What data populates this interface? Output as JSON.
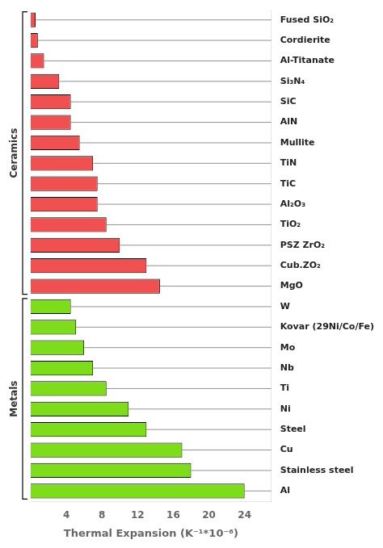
{
  "chart_data": {
    "type": "bar",
    "orientation": "horizontal",
    "xlabel": "Thermal Expansion (K⁻¹*10⁻⁶)",
    "categories": [
      "Fused SiO₂",
      "Cordierite",
      "Al-Titanate",
      "Si₃N₄",
      "SiC",
      "AlN",
      "Mullite",
      "TiN",
      "TiC",
      "Al₂O₃",
      "TiO₂",
      "PSZ ZrO₂",
      "Cub.ZO₂",
      "MgO",
      "W",
      "Kovar (29Ni/Co/Fe)",
      "Mo",
      "Nb",
      "Ti",
      "Ni",
      "Steel",
      "Cu",
      "Stainless steel",
      "Al"
    ],
    "series": [
      {
        "name": "Ceramics",
        "color": "#f05050",
        "values": [
          0.55,
          0.8,
          1.5,
          3.2,
          4.5,
          4.5,
          5.5,
          7.0,
          7.5,
          7.5,
          8.5,
          10.0,
          13.0,
          14.5,
          null,
          null,
          null,
          null,
          null,
          null,
          null,
          null,
          null,
          null
        ]
      },
      {
        "name": "Metals",
        "color": "#7ddd1a",
        "values": [
          null,
          null,
          null,
          null,
          null,
          null,
          null,
          null,
          null,
          null,
          null,
          null,
          null,
          null,
          4.5,
          5.1,
          6.0,
          7.0,
          8.5,
          11.0,
          13.0,
          17.0,
          18.0,
          24.0
        ]
      }
    ],
    "xlim": [
      0,
      27
    ],
    "xticks": [
      4,
      8,
      12,
      16,
      20,
      24
    ],
    "grid": false
  }
}
